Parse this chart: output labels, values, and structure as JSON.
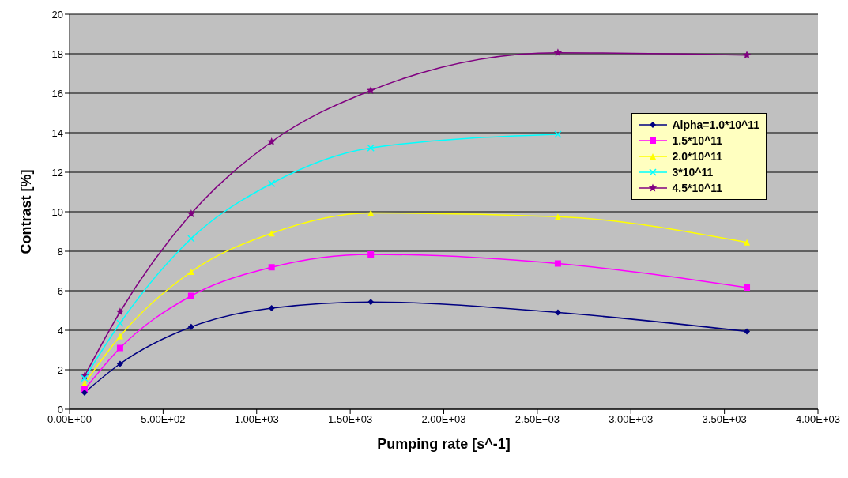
{
  "chart_data": {
    "type": "line",
    "xlabel": "Pumping rate [s^-1]",
    "ylabel": "Contrast [%]",
    "x": [
      80,
      270,
      650,
      1080,
      1610,
      2610,
      3620
    ],
    "series": [
      {
        "name": "Alpha=1.0*10^11",
        "color": "#000080",
        "marker": "diamond",
        "values": [
          0.84,
          2.3,
          4.17,
          5.12,
          5.43,
          4.9,
          3.94
        ]
      },
      {
        "name": "1.5*10^11",
        "color": "#ff00ff",
        "marker": "square",
        "values": [
          1.0,
          3.1,
          5.74,
          7.19,
          7.84,
          7.38,
          6.16
        ]
      },
      {
        "name": "2.0*10^11",
        "color": "#ffff00",
        "marker": "triangle",
        "values": [
          1.3,
          3.7,
          6.96,
          8.91,
          9.94,
          9.75,
          8.45
        ]
      },
      {
        "name": "3*10^11",
        "color": "#00ffff",
        "marker": "cross",
        "values": [
          1.57,
          4.36,
          8.64,
          11.43,
          13.23,
          13.92,
          null
        ]
      },
      {
        "name": "4.5*10^11",
        "color": "#800080",
        "marker": "star",
        "values": [
          1.68,
          4.93,
          9.9,
          13.54,
          16.14,
          18.05,
          17.93
        ]
      }
    ],
    "xlim": [
      0,
      4000
    ],
    "xticks": [
      {
        "value": 0,
        "label": "0.00E+00"
      },
      {
        "value": 500,
        "label": "5.00E+02"
      },
      {
        "value": 1000,
        "label": "1.00E+03"
      },
      {
        "value": 1500,
        "label": "1.50E+03"
      },
      {
        "value": 2000,
        "label": "2.00E+03"
      },
      {
        "value": 2500,
        "label": "2.50E+03"
      },
      {
        "value": 3000,
        "label": "3.00E+03"
      },
      {
        "value": 3500,
        "label": "3.50E+03"
      },
      {
        "value": 4000,
        "label": "4.00E+03"
      }
    ],
    "ylim": [
      0,
      20
    ],
    "yticks": [
      0,
      2,
      4,
      6,
      8,
      10,
      12,
      14,
      16,
      18,
      20
    ],
    "grid": "y",
    "legend": "right"
  }
}
